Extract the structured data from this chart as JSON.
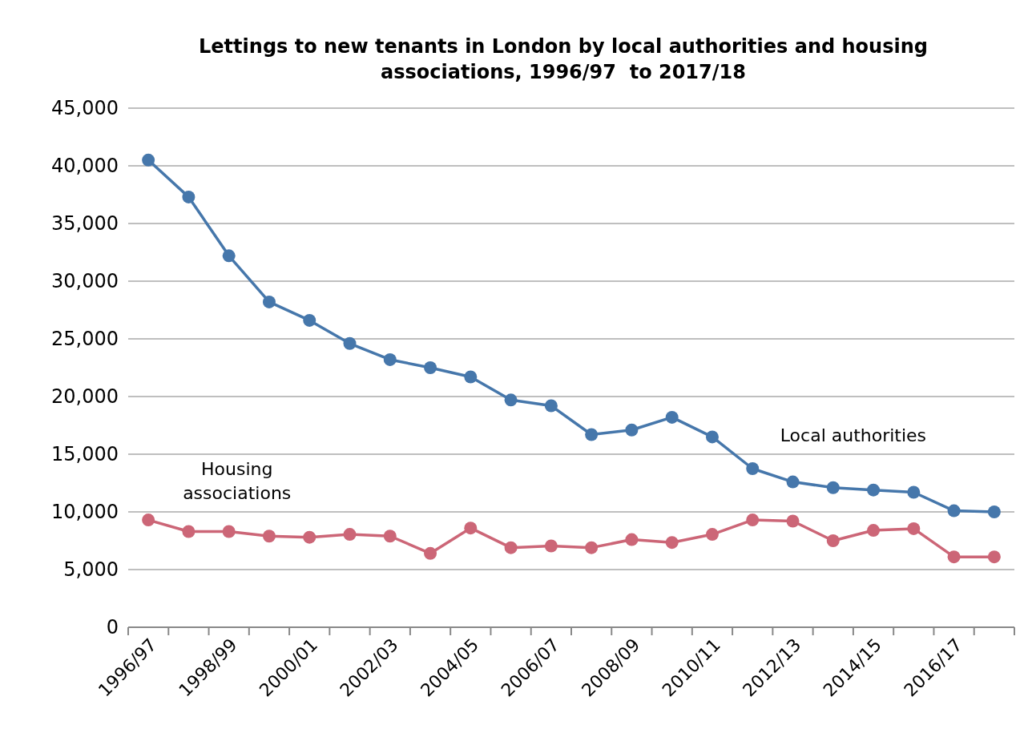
{
  "chart_data": {
    "type": "line",
    "title": "Lettings to new tenants in London by local authorities and housing associations, 1996/97  to 2017/18",
    "categories": [
      "1996/97",
      null,
      "1998/99",
      null,
      "2000/01",
      null,
      "2002/03",
      null,
      "2004/05",
      null,
      "2006/07",
      null,
      "2008/09",
      null,
      "2010/11",
      null,
      "2012/13",
      null,
      "2014/15",
      null,
      "2016/17",
      null
    ],
    "series": [
      {
        "name": "Local authorities",
        "color": "#4677ab",
        "values": [
          40500,
          37300,
          32200,
          28200,
          26600,
          24600,
          23200,
          22500,
          21700,
          19700,
          19200,
          16700,
          17100,
          18200,
          16500,
          13750,
          12600,
          12100,
          11900,
          11700,
          10100,
          10000
        ]
      },
      {
        "name": "Housing associations",
        "color": "#cc6677",
        "values": [
          9300,
          8300,
          8300,
          7900,
          7800,
          8050,
          7900,
          6400,
          8600,
          6900,
          7050,
          6900,
          7600,
          7350,
          8050,
          9300,
          9200,
          7500,
          8400,
          8550,
          6100,
          6100
        ]
      }
    ],
    "ylim": [
      0,
      45000
    ],
    "yticks": [
      0,
      {
        "value": 5000,
        "label": "5,000"
      },
      {
        "value": 10000,
        "label": "10,000"
      },
      {
        "value": 15000,
        "label": "15,000"
      },
      {
        "value": 20000,
        "label": "20,000"
      },
      {
        "value": 25000,
        "label": "25,000"
      },
      {
        "value": 30000,
        "label": "30,000"
      },
      {
        "value": 35000,
        "label": "35,000"
      },
      {
        "value": 40000,
        "label": "40,000"
      },
      {
        "value": 45000,
        "label": "45,000"
      }
    ],
    "grid": "y",
    "marker": "circle",
    "line_style": "solid"
  }
}
